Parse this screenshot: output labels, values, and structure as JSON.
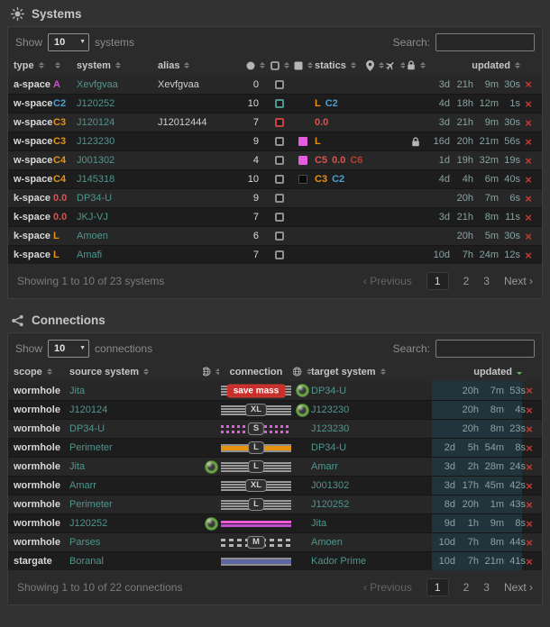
{
  "ui": {
    "delete_glyph": "×"
  },
  "systems": {
    "title": "Systems",
    "controls": {
      "show": "Show",
      "length": "10",
      "unit": "systems",
      "search": "Search:"
    },
    "head": [
      {
        "label": "type",
        "sort": "both"
      },
      {
        "label": "",
        "sort": "both"
      },
      {
        "label": "system",
        "sort": "both"
      },
      {
        "label": "alias",
        "sort": "both"
      },
      {
        "icon": "circle",
        "sort": "both",
        "align": "center"
      },
      {
        "icon": "square-outline",
        "sort": "both",
        "align": "center"
      },
      {
        "icon": "square-filled",
        "sort": "both",
        "align": "center"
      },
      {
        "label": "statics",
        "sort": "both"
      },
      {
        "icon": "map-marker",
        "sort": "both",
        "align": "center"
      },
      {
        "icon": "plane",
        "sort": "both",
        "align": "center"
      },
      {
        "icon": "lock",
        "sort": "both",
        "align": "center"
      },
      {
        "label": "updated",
        "sort": "both",
        "align": "right"
      },
      {
        "label": ""
      }
    ],
    "rows": [
      {
        "type": "a-space",
        "sec": {
          "text": "A",
          "color": "#cf4ecf"
        },
        "system": "Xevfgvaa",
        "alias": "Xevfgvaa",
        "count": "0",
        "box": "gray",
        "fill": null,
        "statics": [],
        "locked": false,
        "updated": [
          "3d",
          "21h",
          "9m",
          "30s"
        ]
      },
      {
        "type": "w-space",
        "sec": {
          "text": "C2",
          "color": "#4a9fd4"
        },
        "system": "J120252",
        "alias": "",
        "count": "10",
        "box": "teal",
        "fill": null,
        "statics": [
          {
            "text": "L",
            "color": "#e8930f"
          },
          {
            "text": "C2",
            "color": "#4a9fd4"
          }
        ],
        "locked": false,
        "updated": [
          "4d",
          "18h",
          "12m",
          "1s"
        ]
      },
      {
        "type": "w-space",
        "sec": {
          "text": "C3",
          "color": "#e8930f"
        },
        "system": "J120124",
        "alias": "J12012444",
        "count": "7",
        "box": "red",
        "fill": null,
        "statics": [
          {
            "text": "0.0",
            "color": "#d9534f"
          }
        ],
        "locked": false,
        "updated": [
          "3d",
          "21h",
          "9m",
          "30s"
        ]
      },
      {
        "type": "w-space",
        "sec": {
          "text": "C3",
          "color": "#e8930f"
        },
        "system": "J123230",
        "alias": "",
        "count": "9",
        "box": "gray",
        "fill": "#e55ce0",
        "statics": [
          {
            "text": "L",
            "color": "#e8930f"
          }
        ],
        "locked": true,
        "updated": [
          "16d",
          "20h",
          "21m",
          "56s"
        ]
      },
      {
        "type": "w-space",
        "sec": {
          "text": "C4",
          "color": "#e8930f"
        },
        "system": "J001302",
        "alias": "",
        "count": "4",
        "box": "gray",
        "fill": "#e55ce0",
        "statics": [
          {
            "text": "C5",
            "color": "#d9534f"
          },
          {
            "text": "0.0",
            "color": "#d9534f"
          },
          {
            "text": "C6",
            "color": "#c0392b"
          }
        ],
        "locked": false,
        "updated": [
          "1d",
          "19h",
          "32m",
          "19s"
        ]
      },
      {
        "type": "w-space",
        "sec": {
          "text": "C4",
          "color": "#e8930f"
        },
        "system": "J145318",
        "alias": "",
        "count": "10",
        "box": "gray",
        "fill": "#0a0a0a",
        "statics": [
          {
            "text": "C3",
            "color": "#e8930f"
          },
          {
            "text": "C2",
            "color": "#4a9fd4"
          }
        ],
        "locked": false,
        "updated": [
          "4d",
          "4h",
          "6m",
          "40s"
        ]
      },
      {
        "type": "k-space",
        "sec": {
          "text": "0.0",
          "color": "#d9534f"
        },
        "system": "DP34-U",
        "alias": "",
        "count": "9",
        "box": "gray",
        "fill": null,
        "statics": [],
        "locked": false,
        "updated": [
          "",
          "20h",
          "7m",
          "6s"
        ]
      },
      {
        "type": "k-space",
        "sec": {
          "text": "0.0",
          "color": "#d9534f"
        },
        "system": "JKJ-VJ",
        "alias": "",
        "count": "7",
        "box": "gray",
        "fill": null,
        "statics": [],
        "locked": false,
        "updated": [
          "3d",
          "21h",
          "8m",
          "11s"
        ]
      },
      {
        "type": "k-space",
        "sec": {
          "text": "L",
          "color": "#e8930f"
        },
        "system": "Amoen",
        "alias": "",
        "count": "6",
        "box": "gray",
        "fill": null,
        "statics": [],
        "locked": false,
        "updated": [
          "",
          "20h",
          "5m",
          "30s"
        ]
      },
      {
        "type": "k-space",
        "sec": {
          "text": "L",
          "color": "#e8930f"
        },
        "system": "Amafi",
        "alias": "",
        "count": "7",
        "box": "gray",
        "fill": null,
        "statics": [],
        "locked": false,
        "updated": [
          "10d",
          "7h",
          "24m",
          "12s"
        ]
      }
    ],
    "footer": "Showing 1 to 10 of 23 systems",
    "pager": {
      "prev": "‹ Previous",
      "pages": [
        "1",
        "2",
        "3"
      ],
      "active": "1",
      "next": "Next ›"
    }
  },
  "connections": {
    "title": "Connections",
    "controls": {
      "show": "Show",
      "length": "10",
      "unit": "connections",
      "search": "Search:"
    },
    "head": [
      {
        "label": "scope",
        "sort": "both"
      },
      {
        "label": "source system",
        "sort": "both"
      },
      {
        "icon": "globe",
        "sort": "both",
        "align": "center"
      },
      {
        "label": "connection",
        "align": "center"
      },
      {
        "icon": "globe",
        "sort": "both",
        "align": "center"
      },
      {
        "label": "target system",
        "sort": "both"
      },
      {
        "label": "updated",
        "sort": "desc",
        "align": "right"
      },
      {
        "label": ""
      }
    ],
    "rows": [
      {
        "scope": "wormhole",
        "source": "Jita",
        "orb_before": false,
        "line": "save",
        "badge": {
          "text": "save mass",
          "type": "mass"
        },
        "orb_after": true,
        "target": "DP34-U",
        "updated": [
          "",
          "20h",
          "7m",
          "53s"
        ]
      },
      {
        "scope": "wormhole",
        "source": "J120124",
        "orb_before": false,
        "line": "gray",
        "badge": {
          "text": "XL",
          "type": "size"
        },
        "orb_after": true,
        "target": "J123230",
        "updated": [
          "",
          "20h",
          "8m",
          "4s"
        ]
      },
      {
        "scope": "wormhole",
        "source": "DP34-U",
        "orb_before": false,
        "line": "dotmag",
        "badge": {
          "text": "S",
          "type": "size"
        },
        "orb_after": false,
        "target": "J123230",
        "updated": [
          "",
          "20h",
          "8m",
          "23s"
        ]
      },
      {
        "scope": "wormhole",
        "source": "Perimeter",
        "orb_before": false,
        "line": "orange",
        "badge": {
          "text": "L",
          "type": "size"
        },
        "orb_after": false,
        "target": "DP34-U",
        "updated": [
          "2d",
          "5h",
          "54m",
          "8s"
        ]
      },
      {
        "scope": "wormhole",
        "source": "Jita",
        "orb_before": true,
        "line": "gray",
        "badge": {
          "text": "L",
          "type": "size"
        },
        "orb_after": false,
        "target": "Amarr",
        "updated": [
          "3d",
          "2h",
          "28m",
          "24s"
        ]
      },
      {
        "scope": "wormhole",
        "source": "Amarr",
        "orb_before": false,
        "line": "gray",
        "badge": {
          "text": "XL",
          "type": "size"
        },
        "orb_after": false,
        "target": "J001302",
        "updated": [
          "3d",
          "17h",
          "45m",
          "42s"
        ]
      },
      {
        "scope": "wormhole",
        "source": "Perimeter",
        "orb_before": false,
        "line": "gray",
        "badge": {
          "text": "L",
          "type": "size"
        },
        "orb_after": false,
        "target": "J120252",
        "updated": [
          "8d",
          "20h",
          "1m",
          "43s"
        ]
      },
      {
        "scope": "wormhole",
        "source": "J120252",
        "orb_before": true,
        "line": "mag",
        "badge": null,
        "orb_after": false,
        "target": "Jita",
        "updated": [
          "9d",
          "1h",
          "9m",
          "8s"
        ]
      },
      {
        "scope": "wormhole",
        "source": "Parses",
        "orb_before": false,
        "line": "dash",
        "badge": {
          "text": "M",
          "type": "size"
        },
        "orb_after": false,
        "target": "Amoen",
        "updated": [
          "10d",
          "7h",
          "8m",
          "44s"
        ]
      },
      {
        "scope": "stargate",
        "source": "Boranal",
        "orb_before": false,
        "line": "blue",
        "badge": null,
        "orb_after": false,
        "target": "Kador Prime",
        "updated": [
          "10d",
          "7h",
          "21m",
          "41s"
        ]
      }
    ],
    "footer": "Showing 1 to 10 of 22 connections",
    "pager": {
      "prev": "‹ Previous",
      "pages": [
        "1",
        "2",
        "3"
      ],
      "active": "1",
      "next": "Next ›"
    }
  }
}
